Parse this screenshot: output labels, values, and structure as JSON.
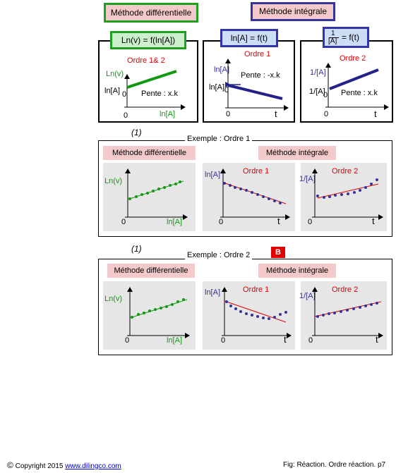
{
  "headers": {
    "differential": "Méthode différentielle",
    "integral": "Méthode intégrale"
  },
  "top": {
    "eq_left": "Ln(v) = f(ln[A])",
    "eq_mid": "ln[A] = f(t)",
    "eq_right_num": "1",
    "eq_right_den": "[A]",
    "eq_right_tail": "= f(t)",
    "left": {
      "title": "Ordre 1& 2",
      "ylabel": "Ln(v)",
      "yintercept": "ln[A]",
      "zero_sub": "0",
      "slope": "Pente : x.k",
      "origin": "0",
      "xlabel": "ln[A]"
    },
    "mid": {
      "title": "Ordre 1",
      "ylabel": "ln[A]",
      "yintercept": "ln[A]",
      "zero_sub": "0",
      "slope": "Pente : -x.k",
      "origin": "0",
      "xlabel": "t"
    },
    "right": {
      "title": "Ordre 2",
      "ylabel": "1/[A]",
      "yintercept": "1/[A]",
      "zero_sub": "0",
      "slope": "Pente : x.k",
      "origin": "0",
      "xlabel": "t"
    }
  },
  "ex1": {
    "note": "(1)",
    "caption": "Exemple : Ordre 1",
    "diff_label": "Méthode différentielle",
    "int_label": "Méthode intégrale",
    "g1": {
      "ylabel": "Ln(v)",
      "origin": "0",
      "xlabel": "ln[A]"
    },
    "g2": {
      "title": "Ordre 1",
      "ylabel": "ln[A]",
      "origin": "0",
      "xlabel": "t"
    },
    "g3": {
      "title": "Ordre 2",
      "ylabel": "1/[A]",
      "origin": "0",
      "xlabel": "t"
    }
  },
  "ex2": {
    "note": "(1)",
    "caption": "Exemple : Ordre 2",
    "badge": "B",
    "diff_label": "Méthode différentielle",
    "int_label": "Méthode intégrale",
    "g1": {
      "ylabel": "Ln(v)",
      "origin": "0",
      "xlabel": "ln[A]"
    },
    "g2": {
      "title": "Ordre 1",
      "ylabel": "ln[A]",
      "origin": "0",
      "xlabel": "t"
    },
    "g3": {
      "title": "Ordre 2",
      "ylabel": "1/[A]",
      "origin": "0",
      "xlabel": "t"
    }
  },
  "footer": {
    "copyright_symbol": "©",
    "copyright_text": "Copyright 2015",
    "link": "www.dilingco.com",
    "fig": "Fig:  Réaction. Ordre réaction. p7"
  },
  "colors": {
    "green": "#119911",
    "blue": "#333399",
    "red": "#dd0000",
    "pink": "#f4c9c9",
    "headerGreenBg": "#f3cccc",
    "navy": "#22228a"
  }
}
